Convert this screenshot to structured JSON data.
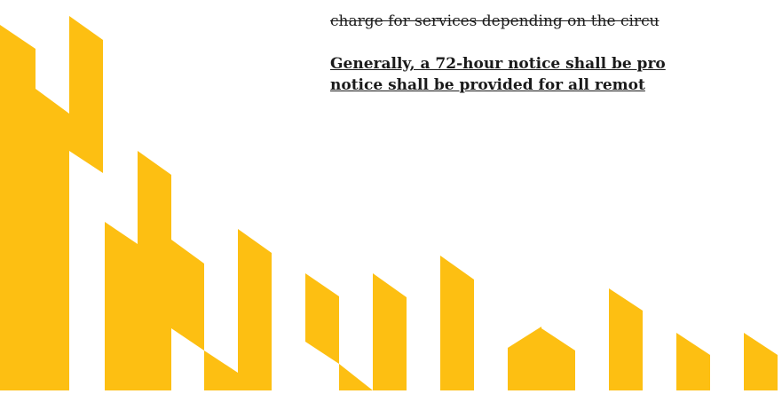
{
  "paragraphs": [
    {
      "text": "charge for services depending on the circu"
    },
    {
      "lines": [
        "Generally, a 72-hour notice shall be pro",
        "notice shall be provided for all remot"
      ]
    }
  ]
}
